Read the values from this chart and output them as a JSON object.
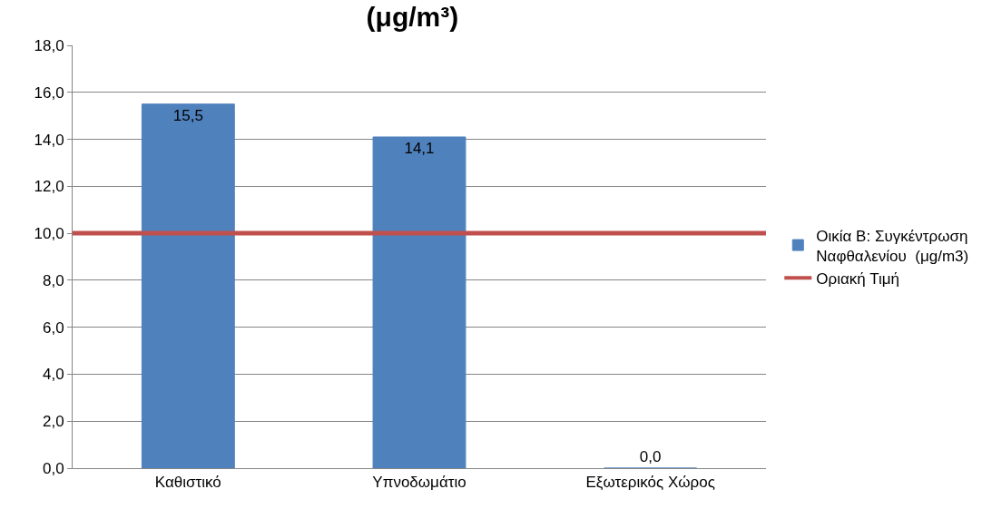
{
  "chart_data": {
    "type": "bar",
    "title": "(μg/m³)",
    "categories": [
      "Καθιστικό",
      "Υπνοδωμάτιο",
      "Εξωτερικός Χώρος"
    ],
    "series": [
      {
        "name": "Οικία Β: Συγκέντρωση Ναφθαλενίου  (μg/m3)",
        "color": "#4f81bd",
        "values": [
          15.5,
          14.1,
          0.0
        ],
        "value_labels": [
          "15,5",
          "14,1",
          "0,0"
        ]
      }
    ],
    "ref_lines": [
      {
        "axis": "y",
        "value": 10,
        "label": "Οριακή Τιμή",
        "color": "#c0504d"
      }
    ],
    "ylim": [
      0,
      18
    ],
    "yticks": [
      {
        "value": 0,
        "label": "0,0"
      },
      {
        "value": 2,
        "label": "2,0"
      },
      {
        "value": 4,
        "label": "4,0"
      },
      {
        "value": 6,
        "label": "6,0"
      },
      {
        "value": 8,
        "label": "8,0"
      },
      {
        "value": 10,
        "label": "10,0"
      },
      {
        "value": 12,
        "label": "12,0"
      },
      {
        "value": 14,
        "label": "14,0"
      },
      {
        "value": 16,
        "label": "16,0"
      },
      {
        "value": 18,
        "label": "18,0"
      }
    ],
    "grid": "y",
    "legend": "right"
  }
}
